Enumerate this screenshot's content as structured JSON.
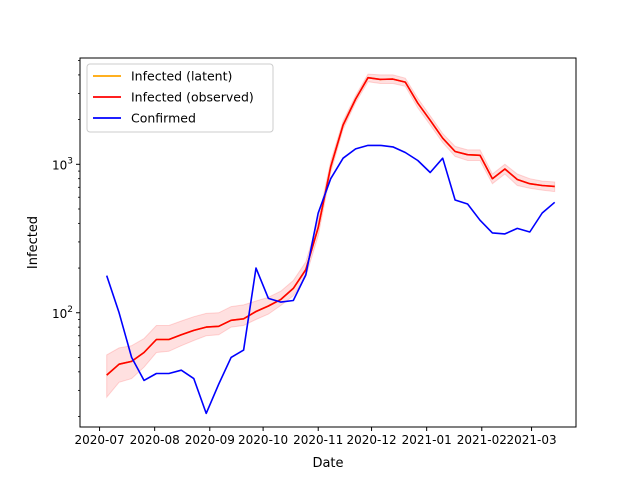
{
  "chart_data": {
    "type": "line",
    "xlabel": "Date",
    "ylabel": "Infected",
    "yscale": "log",
    "ylim": [
      17,
      5200
    ],
    "xlim": [
      "2020-06-20",
      "2021-03-26"
    ],
    "grid": false,
    "legend_position": "top-left",
    "x_ticks": [
      "2020-07",
      "2020-08",
      "2020-09",
      "2020-10",
      "2020-11",
      "2020-12",
      "2021-01",
      "2021-02",
      "2021-03"
    ],
    "y_ticks": [
      {
        "value": 100,
        "base": "10",
        "exp": "2"
      },
      {
        "value": 1000,
        "base": "10",
        "exp": "3"
      }
    ],
    "band": {
      "color": "#ff0000",
      "opacity": 0.12,
      "lower": [
        27,
        34,
        36,
        43,
        54,
        55,
        60,
        65,
        70,
        71,
        80,
        82,
        90,
        98,
        112,
        130,
        175,
        330,
        880,
        1720,
        2600,
        3600,
        3500,
        3500,
        3350,
        2400,
        1840,
        1400,
        1130,
        1060,
        1060,
        740,
        860,
        720,
        690,
        670,
        655
      ],
      "upper": [
        52,
        58,
        60,
        67,
        82,
        82,
        88,
        94,
        99,
        100,
        110,
        113,
        120,
        127,
        140,
        165,
        220,
        420,
        1050,
        1960,
        2900,
        4050,
        4000,
        4000,
        3800,
        2780,
        2120,
        1610,
        1320,
        1250,
        1250,
        860,
        1000,
        860,
        800,
        770,
        760
      ]
    },
    "series": [
      {
        "name": "Infected (latent)",
        "color": "#ffa500",
        "x": [
          "2020-07-05",
          "2020-07-12",
          "2020-07-19",
          "2020-07-26",
          "2020-08-02",
          "2020-08-09",
          "2020-08-16",
          "2020-08-23",
          "2020-08-30",
          "2020-09-06",
          "2020-09-13",
          "2020-09-20",
          "2020-09-27",
          "2020-10-04",
          "2020-10-11",
          "2020-10-18",
          "2020-10-25",
          "2020-11-01",
          "2020-11-08",
          "2020-11-15",
          "2020-11-22",
          "2020-11-29",
          "2020-12-06",
          "2020-12-13",
          "2020-12-20",
          "2020-12-27",
          "2021-01-03",
          "2021-01-10",
          "2021-01-17",
          "2021-01-24",
          "2021-01-31",
          "2021-02-07",
          "2021-02-14",
          "2021-02-21",
          "2021-02-28",
          "2021-03-07",
          "2021-03-14"
        ],
        "values": [
          38,
          45,
          47,
          54,
          66,
          66,
          71,
          76,
          80,
          81,
          89,
          91,
          102,
          111,
          123,
          146,
          195,
          375,
          960,
          1840,
          2750,
          3830,
          3730,
          3750,
          3580,
          2580,
          1980,
          1500,
          1220,
          1160,
          1150,
          800,
          930,
          790,
          740,
          720,
          710
        ]
      },
      {
        "name": "Infected (observed)",
        "color": "#ff0000",
        "x": [
          "2020-07-05",
          "2020-07-12",
          "2020-07-19",
          "2020-07-26",
          "2020-08-02",
          "2020-08-09",
          "2020-08-16",
          "2020-08-23",
          "2020-08-30",
          "2020-09-06",
          "2020-09-13",
          "2020-09-20",
          "2020-09-27",
          "2020-10-04",
          "2020-10-11",
          "2020-10-18",
          "2020-10-25",
          "2020-11-01",
          "2020-11-08",
          "2020-11-15",
          "2020-11-22",
          "2020-11-29",
          "2020-12-06",
          "2020-12-13",
          "2020-12-20",
          "2020-12-27",
          "2021-01-03",
          "2021-01-10",
          "2021-01-17",
          "2021-01-24",
          "2021-01-31",
          "2021-02-07",
          "2021-02-14",
          "2021-02-21",
          "2021-02-28",
          "2021-03-07",
          "2021-03-14"
        ],
        "values": [
          38,
          45,
          47,
          54,
          66,
          66,
          71,
          76,
          80,
          81,
          89,
          91,
          102,
          111,
          123,
          146,
          195,
          375,
          960,
          1840,
          2750,
          3830,
          3730,
          3750,
          3580,
          2580,
          1980,
          1500,
          1220,
          1160,
          1150,
          800,
          930,
          790,
          740,
          720,
          710
        ]
      },
      {
        "name": "Confirmed",
        "color": "#0000ff",
        "x": [
          "2020-07-05",
          "2020-07-12",
          "2020-07-19",
          "2020-07-26",
          "2020-08-02",
          "2020-08-09",
          "2020-08-16",
          "2020-08-23",
          "2020-08-30",
          "2020-09-06",
          "2020-09-13",
          "2020-09-20",
          "2020-09-27",
          "2020-10-04",
          "2020-10-11",
          "2020-10-18",
          "2020-10-25",
          "2020-11-01",
          "2020-11-08",
          "2020-11-15",
          "2020-11-22",
          "2020-11-29",
          "2020-12-06",
          "2020-12-13",
          "2020-12-20",
          "2020-12-27",
          "2021-01-03",
          "2021-01-10",
          "2021-01-17",
          "2021-01-24",
          "2021-01-31",
          "2021-02-07",
          "2021-02-14",
          "2021-02-21",
          "2021-02-28",
          "2021-03-07",
          "2021-03-14"
        ],
        "values": [
          178,
          100,
          50,
          35,
          39,
          39,
          41,
          36,
          21,
          33,
          50,
          56,
          200,
          125,
          118,
          121,
          180,
          470,
          800,
          1100,
          1270,
          1340,
          1340,
          1310,
          1200,
          1060,
          880,
          1100,
          575,
          540,
          420,
          345,
          340,
          370,
          350,
          470,
          555
        ]
      }
    ]
  }
}
